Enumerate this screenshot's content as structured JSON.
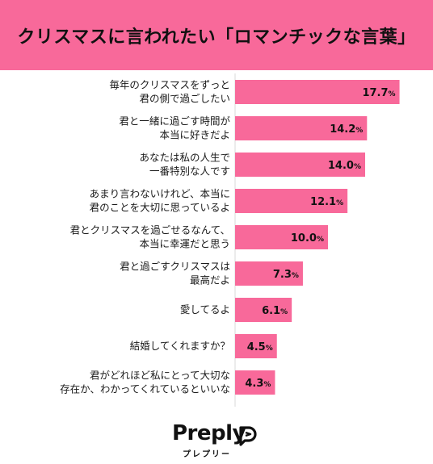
{
  "header": {
    "title": "クリスマスに言われたい「ロマンチックな言葉」"
  },
  "colors": {
    "accent": "#f8699a",
    "bar": "#f8699a",
    "text": "#1a1a1a"
  },
  "chart_data": {
    "type": "bar",
    "orientation": "horizontal",
    "categories": [
      [
        "毎年のクリスマスをずっと",
        "君の側で過ごしたい"
      ],
      [
        "君と一緒に過ごす時間が",
        "本当に好きだよ"
      ],
      [
        "あなたは私の人生で",
        "一番特別な人です"
      ],
      [
        "あまり言わないけれど、本当に",
        "君のことを大切に思っているよ"
      ],
      [
        "君とクリスマスを過ごせるなんて、",
        "本当に幸運だと思う"
      ],
      [
        "君と過ごすクリスマスは",
        "最高だよ"
      ],
      [
        "愛してるよ"
      ],
      [
        "結婚してくれますか？"
      ],
      [
        "君がどれほど私にとって大切な",
        "存在か、わかってくれているといいな"
      ]
    ],
    "values": [
      17.7,
      14.2,
      14.0,
      12.1,
      10.0,
      7.3,
      6.1,
      4.5,
      4.3
    ],
    "value_labels": [
      "17.7",
      "14.2",
      "14.0",
      "12.1",
      "10.0",
      "7.3",
      "6.1",
      "4.5",
      "4.3"
    ],
    "unit": "%",
    "xlim": [
      0,
      20
    ],
    "grid": false
  },
  "logo": {
    "name": "Preply",
    "sub": "プレプリー",
    "icon": "preply-logo-icon"
  }
}
